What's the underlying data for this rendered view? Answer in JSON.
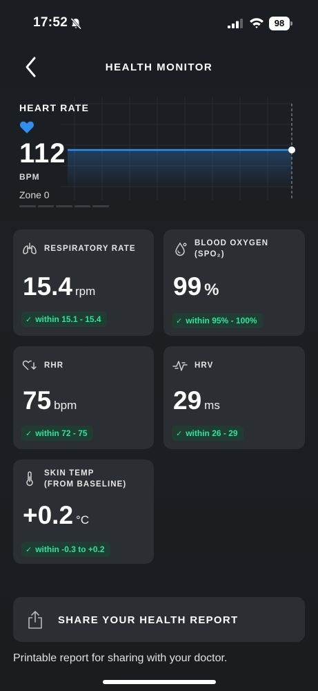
{
  "status_bar": {
    "time": "17:52",
    "battery": "98",
    "icons": [
      "bell-slash-icon",
      "signal-icon",
      "wifi-icon",
      "battery-icon"
    ]
  },
  "header": {
    "title": "HEALTH MONITOR",
    "back_icon": "chevron-left-icon"
  },
  "heart_rate": {
    "title": "HEART RATE",
    "value": "112",
    "unit": "BPM",
    "zone": "Zone 0",
    "icon": "heart-icon",
    "color": "#2f8ff0"
  },
  "metrics": {
    "respiratory": {
      "label": "RESPIRATORY RATE",
      "value": "15.4",
      "unit": "rpm",
      "range": "within 15.1 - 15.4",
      "icon": "lungs-icon"
    },
    "blood_oxygen": {
      "label_line1": "BLOOD OXYGEN",
      "label_line2": "(SPO₂)",
      "value": "99",
      "unit": "%",
      "range": "within 95% - 100%",
      "icon": "droplet-icon"
    },
    "rhr": {
      "label": "RHR",
      "value": "75",
      "unit": "bpm",
      "range": "within 72 - 75",
      "icon": "heart-down-icon"
    },
    "hrv": {
      "label": "HRV",
      "value": "29",
      "unit": "ms",
      "range": "within 26 - 29",
      "icon": "pulse-icon"
    },
    "skin_temp": {
      "label_line1": "SKIN TEMP",
      "label_line2": "(FROM BASELINE)",
      "value": "+0.2",
      "unit": "°C",
      "range": "within -0.3 to +0.2",
      "icon": "thermometer-icon"
    }
  },
  "colors": {
    "accent_green": "#2ee39b",
    "card_bg": "#2b2e33",
    "background": "#1a1d21"
  },
  "share": {
    "label": "SHARE YOUR HEALTH REPORT",
    "description": "Printable report for sharing with your doctor.",
    "icon": "share-icon"
  }
}
